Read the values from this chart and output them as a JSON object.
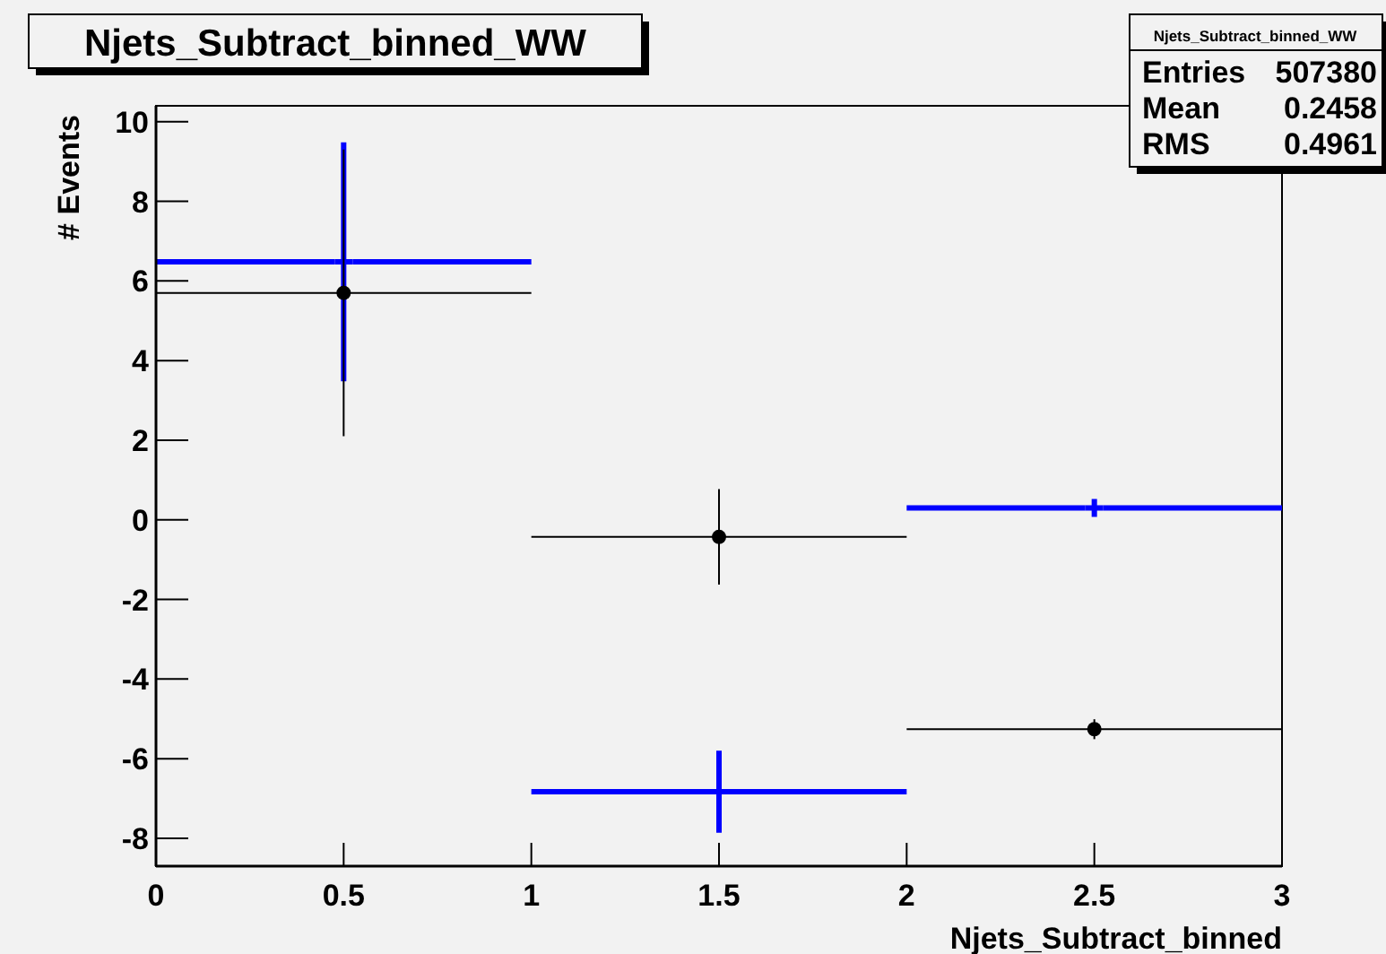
{
  "chart_data": {
    "type": "scatter",
    "title": "Njets_Subtract_binned_WW",
    "xlabel": "Njets_Subtract_binned",
    "ylabel": "# Events",
    "x": [
      0.5,
      1.5,
      2.5
    ],
    "series": [
      {
        "color": "#0000ff",
        "marker": "cross",
        "values": [
          6.48,
          -6.83,
          0.3
        ],
        "errors": [
          3.0,
          1.03,
          0.2
        ],
        "xerrors": [
          0.5,
          0.5,
          0.5
        ]
      },
      {
        "color": "#000000",
        "marker": "circle",
        "values": [
          5.7,
          -0.43,
          -5.26
        ],
        "errors": [
          3.6,
          1.2,
          0.25
        ],
        "xerrors": [
          0.5,
          0.5,
          0.5
        ]
      }
    ],
    "xlim": [
      0,
      3
    ],
    "xticks": [
      0,
      0.5,
      1,
      1.5,
      2,
      2.5,
      3
    ],
    "ylim": [
      -8.7,
      10.4
    ],
    "yticks": [
      -8,
      -6,
      -4,
      -2,
      0,
      2,
      4,
      6,
      8,
      10
    ],
    "annotations": [
      "Njets_Subtract_binned_WW",
      "Entries",
      "507380",
      "Mean",
      "0.2458",
      "RMS",
      "0.4961"
    ]
  }
}
